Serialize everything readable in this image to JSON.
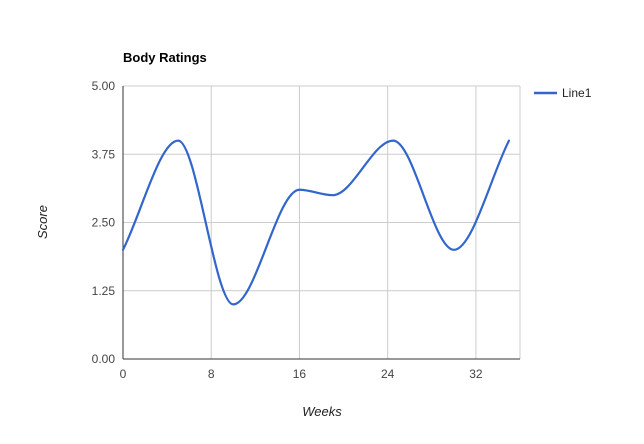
{
  "chart_data": {
    "type": "line",
    "title": "Body Ratings",
    "xlabel": "Weeks",
    "ylabel": "Score",
    "xlim": [
      0,
      36
    ],
    "ylim": [
      0,
      5
    ],
    "xticks": [
      0,
      8,
      16,
      24,
      32
    ],
    "yticks": [
      0,
      1.25,
      2.5,
      3.75,
      5
    ],
    "xtick_labels": [
      "0",
      "8",
      "16",
      "24",
      "32"
    ],
    "ytick_labels": [
      "0.00",
      "1.25",
      "2.50",
      "3.75",
      "5.00"
    ],
    "grid": true,
    "legend_position": "right",
    "series": [
      {
        "name": "Line1",
        "color": "#3366cc",
        "x": [
          0,
          5,
          10,
          16,
          19,
          24.5,
          30,
          35
        ],
        "y": [
          2,
          4,
          1,
          3.1,
          3,
          4,
          2,
          4
        ]
      }
    ]
  }
}
